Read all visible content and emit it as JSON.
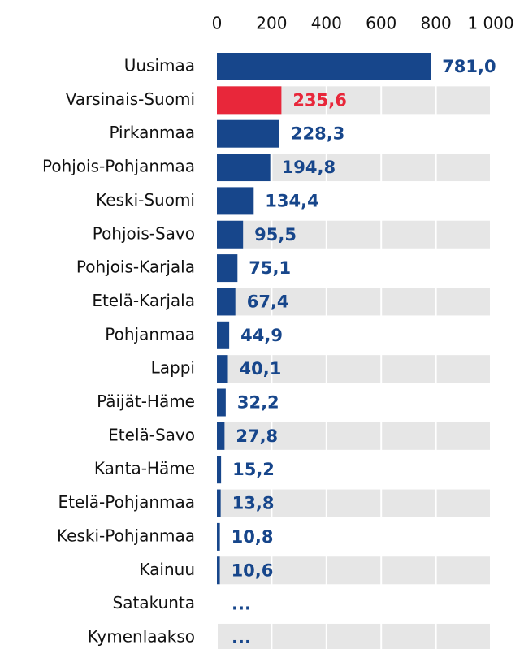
{
  "chart_data": {
    "type": "bar",
    "orientation": "horizontal",
    "categories": [
      "Uusimaa",
      "Varsinais-Suomi",
      "Pirkanmaa",
      "Pohjois-Pohjanmaa",
      "Keski-Suomi",
      "Pohjois-Savo",
      "Pohjois-Karjala",
      "Etelä-Karjala",
      "Pohjanmaa",
      "Lappi",
      "Päijät-Häme",
      "Etelä-Savo",
      "Kanta-Häme",
      "Etelä-Pohjanmaa",
      "Keski-Pohjanmaa",
      "Kainuu",
      "Satakunta",
      "Kymenlaakso"
    ],
    "values": [
      781.0,
      235.6,
      228.3,
      194.8,
      134.4,
      95.5,
      75.1,
      67.4,
      44.9,
      40.1,
      32.2,
      27.8,
      15.2,
      13.8,
      10.8,
      10.6,
      null,
      null
    ],
    "value_labels": [
      "781,0",
      "235,6",
      "228,3",
      "194,8",
      "134,4",
      "95,5",
      "75,1",
      "67,4",
      "44,9",
      "40,1",
      "32,2",
      "27,8",
      "15,2",
      "13,8",
      "10,8",
      "10,6",
      "...",
      "..."
    ],
    "colors": [
      "#17468b",
      "#e8273a",
      "#17468b",
      "#17468b",
      "#17468b",
      "#17468b",
      "#17468b",
      "#17468b",
      "#17468b",
      "#17468b",
      "#17468b",
      "#17468b",
      "#17468b",
      "#17468b",
      "#17468b",
      "#17468b",
      "#17468b",
      "#17468b"
    ],
    "xlim": [
      0,
      1000
    ],
    "xticks": [
      0,
      200,
      400,
      600,
      800,
      {
        "value": 1000,
        "label": "1 000"
      }
    ],
    "grid": true
  }
}
